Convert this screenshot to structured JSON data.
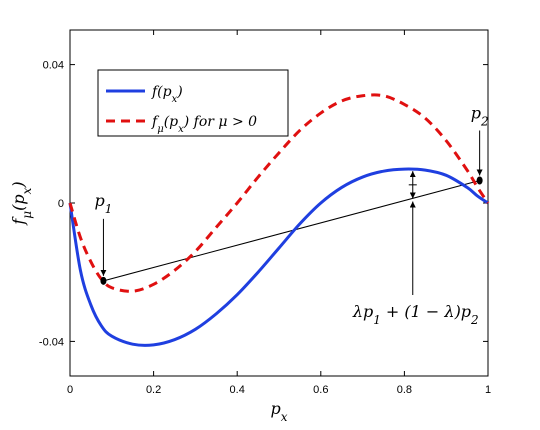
{
  "chart_data": {
    "type": "line",
    "xlabel": "p_x",
    "ylabel": "f_μ(p_x)",
    "xlim": [
      0,
      1
    ],
    "ylim": [
      -0.05,
      0.05
    ],
    "xticks": [
      0,
      0.2,
      0.4,
      0.6,
      0.8,
      1
    ],
    "xtick_labels": [
      "0",
      "0.2",
      "0.4",
      "0.6",
      "0.8",
      "1"
    ],
    "yticks": [
      -0.04,
      0,
      0.04
    ],
    "ytick_labels": [
      "-0.04",
      "0",
      "0.04"
    ],
    "grid": false,
    "legend_position": "top-left",
    "series": [
      {
        "name": "f(p_x)",
        "color": "#1f3fe0",
        "style": "solid",
        "x": [
          0,
          0.025,
          0.05,
          0.075,
          0.1,
          0.15,
          0.2,
          0.25,
          0.3,
          0.35,
          0.4,
          0.45,
          0.5,
          0.55,
          0.6,
          0.65,
          0.7,
          0.75,
          0.8,
          0.85,
          0.9,
          0.95,
          0.975,
          1
        ],
        "y": [
          0,
          -0.0195,
          -0.0295,
          -0.0355,
          -0.0385,
          -0.0408,
          -0.041,
          -0.0395,
          -0.0365,
          -0.032,
          -0.0265,
          -0.02,
          -0.013,
          -0.006,
          0.0,
          0.0045,
          0.0075,
          0.0092,
          0.0098,
          0.0095,
          0.008,
          0.0045,
          0.002,
          0
        ]
      },
      {
        "name": "f_μ(p_x) for μ > 0",
        "color": "#e01010",
        "style": "dashed",
        "x": [
          0,
          0.025,
          0.05,
          0.075,
          0.1,
          0.15,
          0.2,
          0.25,
          0.3,
          0.35,
          0.4,
          0.45,
          0.5,
          0.55,
          0.6,
          0.65,
          0.7,
          0.75,
          0.8,
          0.85,
          0.9,
          0.95,
          0.975,
          1
        ],
        "y": [
          0,
          -0.01,
          -0.017,
          -0.022,
          -0.0245,
          -0.0255,
          -0.0235,
          -0.0195,
          -0.014,
          -0.007,
          0.0,
          0.0075,
          0.0145,
          0.021,
          0.026,
          0.0295,
          0.031,
          0.031,
          0.0285,
          0.0245,
          0.018,
          0.0095,
          0.0045,
          0
        ]
      }
    ],
    "chord": {
      "x": [
        0.08,
        0.98
      ],
      "y": [
        -0.0225,
        0.0065
      ],
      "color": "#000000"
    },
    "points": [
      {
        "name": "p_1",
        "x": 0.08,
        "y": -0.0225
      },
      {
        "name": "p_2",
        "x": 0.98,
        "y": 0.0065
      }
    ],
    "annotations": [
      {
        "id": "p1",
        "text": "p_1",
        "x": 0.08,
        "y": -0.0225,
        "position": "above"
      },
      {
        "id": "p2",
        "text": "p_2",
        "x": 0.98,
        "y": 0.0065,
        "position": "above"
      },
      {
        "id": "convex",
        "text": "λp_1 + (1 − λ)p_2",
        "x": 0.82,
        "y": 0.001,
        "position": "below"
      }
    ],
    "gap_marker": {
      "x": 0.82,
      "y_low": 0.001,
      "y_high": 0.0095
    }
  }
}
